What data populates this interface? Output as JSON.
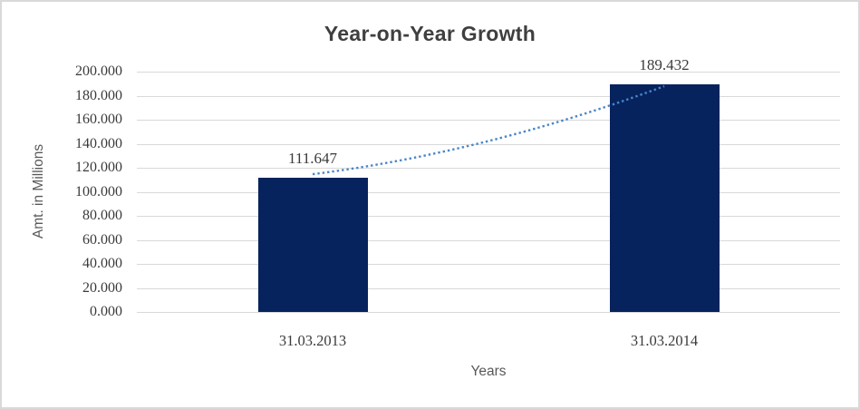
{
  "chart_data": {
    "type": "bar",
    "title": "Year-on-Year Growth",
    "xlabel": "Years",
    "ylabel": "Amt. in Millions",
    "categories": [
      "31.03.2013",
      "31.03.2014"
    ],
    "values": [
      111.647,
      189.432
    ],
    "data_labels": [
      "111.647",
      "189.432"
    ],
    "y_ticks": [
      "200.000",
      "180.000",
      "160.000",
      "140.000",
      "120.000",
      "100.000",
      "80.000",
      "60.000",
      "40.000",
      "20.000",
      "0.000"
    ],
    "ylim": [
      0,
      200
    ],
    "y_step": 20,
    "grid": true,
    "legend": "none",
    "trendline": {
      "style": "dotted",
      "from_category": "31.03.2013",
      "to_category": "31.03.2014"
    },
    "colors": {
      "bar_fill": "#06235E",
      "trendline": "#4A86C8",
      "gridline": "#D9D9D9",
      "frame_border": "#D9D9D9",
      "title_text": "#3F3F3F",
      "axis_title_text": "#595959",
      "tick_text": "#3A3A3A",
      "background": "#FFFFFF"
    }
  }
}
